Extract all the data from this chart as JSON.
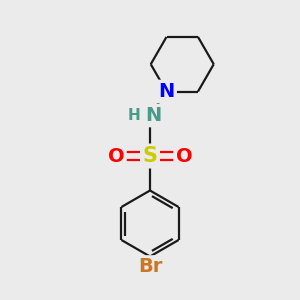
{
  "bg_color": "#ebebeb",
  "bond_color": "#1a1a1a",
  "bond_width": 1.6,
  "atom_colors": {
    "S": "#cccc00",
    "O": "#ff0000",
    "N_blue": "#0000ff",
    "N_teal": "#4a9a8a",
    "Br": "#cc7722",
    "H": "#4a9a8a"
  },
  "font_size": 14,
  "font_size_H": 11
}
